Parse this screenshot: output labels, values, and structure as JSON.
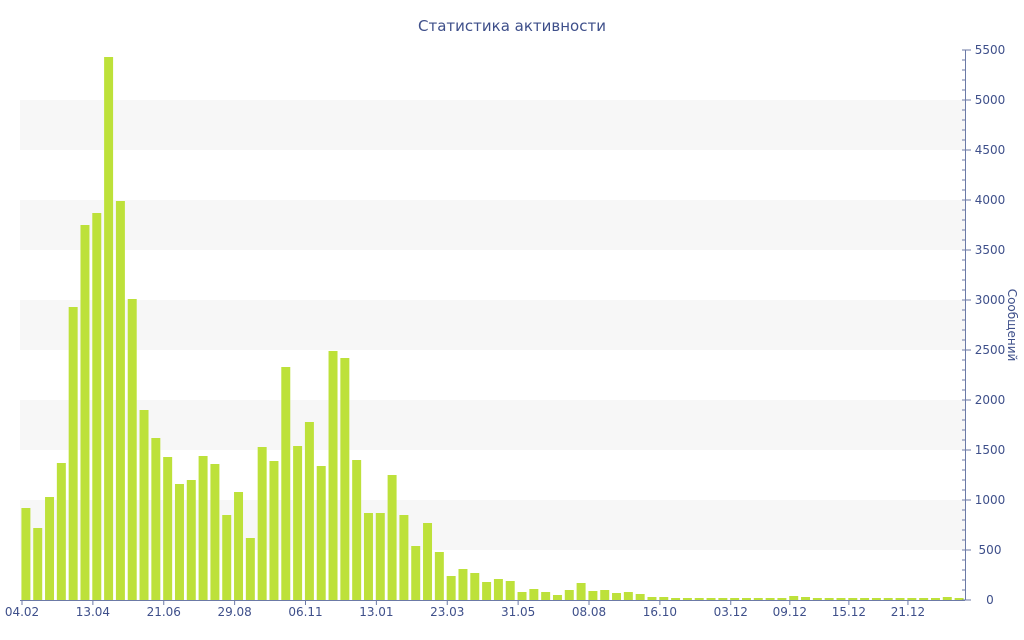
{
  "chart_data": {
    "type": "bar",
    "title": "Статистика активности",
    "ylabel": "Сообщений",
    "xlabel": "",
    "ylim": [
      0,
      5500
    ],
    "y_ticks": [
      0,
      500,
      1000,
      1500,
      2000,
      2500,
      3000,
      3500,
      4000,
      4500,
      5000,
      5500
    ],
    "y_axis_side": "right",
    "alternating_bands": true,
    "x_tick_labels": [
      "04.02",
      "13.04",
      "21.06",
      "29.08",
      "06.11",
      "13.01",
      "23.03",
      "31.05",
      "08.08",
      "16.10",
      "03.12",
      "09.12",
      "15.12",
      "21.12"
    ],
    "x_tick_positions": [
      0,
      6,
      12,
      18,
      24,
      30,
      36,
      42,
      48,
      54,
      60,
      65,
      70,
      75
    ],
    "color": "#bde13a",
    "values": [
      920,
      720,
      1030,
      1370,
      2930,
      3750,
      3870,
      5430,
      3990,
      3010,
      1900,
      1620,
      1430,
      1160,
      1200,
      1440,
      1360,
      850,
      1080,
      620,
      1530,
      1390,
      2330,
      1540,
      1780,
      1340,
      2490,
      2420,
      1400,
      870,
      870,
      1250,
      850,
      540,
      770,
      480,
      240,
      310,
      270,
      180,
      210,
      190,
      80,
      110,
      80,
      50,
      100,
      170,
      90,
      100,
      70,
      80,
      60,
      30,
      30,
      20,
      20,
      20,
      20,
      20,
      20,
      20,
      20,
      20,
      20,
      40,
      30,
      20,
      20,
      20,
      20,
      20,
      20,
      20,
      20,
      20,
      20,
      20,
      30,
      20
    ]
  }
}
